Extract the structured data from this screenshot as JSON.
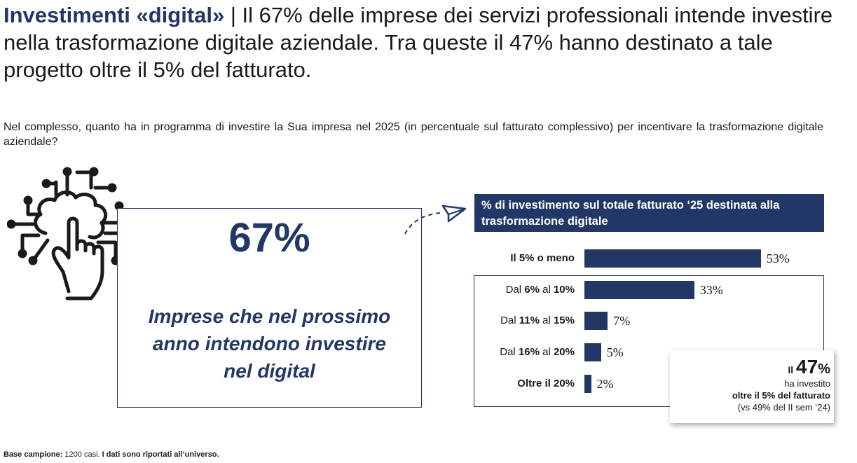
{
  "title": {
    "highlight": "Investimenti «digital»",
    "separator": " | ",
    "text": "Il 67% delle imprese dei servizi professionali intende investire nella trasformazione digitale aziendale. Tra queste il 47% hanno destinato a tale progetto oltre il 5% del fatturato."
  },
  "question": "Nel complesso, quanto ha in programma di investire la Sua impresa nel 2025 (in percentuale sul fatturato complessivo) per incentivare la trasformazione digitale aziendale?",
  "kpi": {
    "value": "67%",
    "label_line1": "Imprese che nel prossimo",
    "label_line2": "anno intendono investire",
    "label_line3": "nel digital"
  },
  "colors": {
    "primary": "#223766",
    "text": "#1a1a1a"
  },
  "chart_data": {
    "type": "bar",
    "orientation": "horizontal",
    "title": "% di investimento sul totale fatturato ‘25 destinata alla trasformazione digitale",
    "categories": [
      {
        "pre": "",
        "bold": "Il 5% o meno",
        "mid": "",
        "bold2": ""
      },
      {
        "pre": "Dal ",
        "bold": "6%",
        "mid": " al ",
        "bold2": "10%"
      },
      {
        "pre": "Dal ",
        "bold": "11%",
        "mid": " al ",
        "bold2": "15%"
      },
      {
        "pre": "Dal ",
        "bold": "16%",
        "mid": " al ",
        "bold2": "20%"
      },
      {
        "pre": "",
        "bold": "Oltre il 20%",
        "mid": "",
        "bold2": ""
      }
    ],
    "values": [
      53,
      33,
      7,
      5,
      2
    ],
    "value_labels": [
      "53%",
      "33%",
      "7%",
      "5%",
      "2%"
    ],
    "xlim": [
      0,
      100
    ]
  },
  "callout": {
    "prefix": "Il",
    "value": "47",
    "unit": "%",
    "line1": "ha investito",
    "line2": "oltre il 5% del fatturato",
    "line3": "(vs 49% del II sem ‘24)"
  },
  "footnote": {
    "label": "Base campione:",
    "sample": " 1200 casi. ",
    "note": "I dati sono riportati all’universo."
  }
}
